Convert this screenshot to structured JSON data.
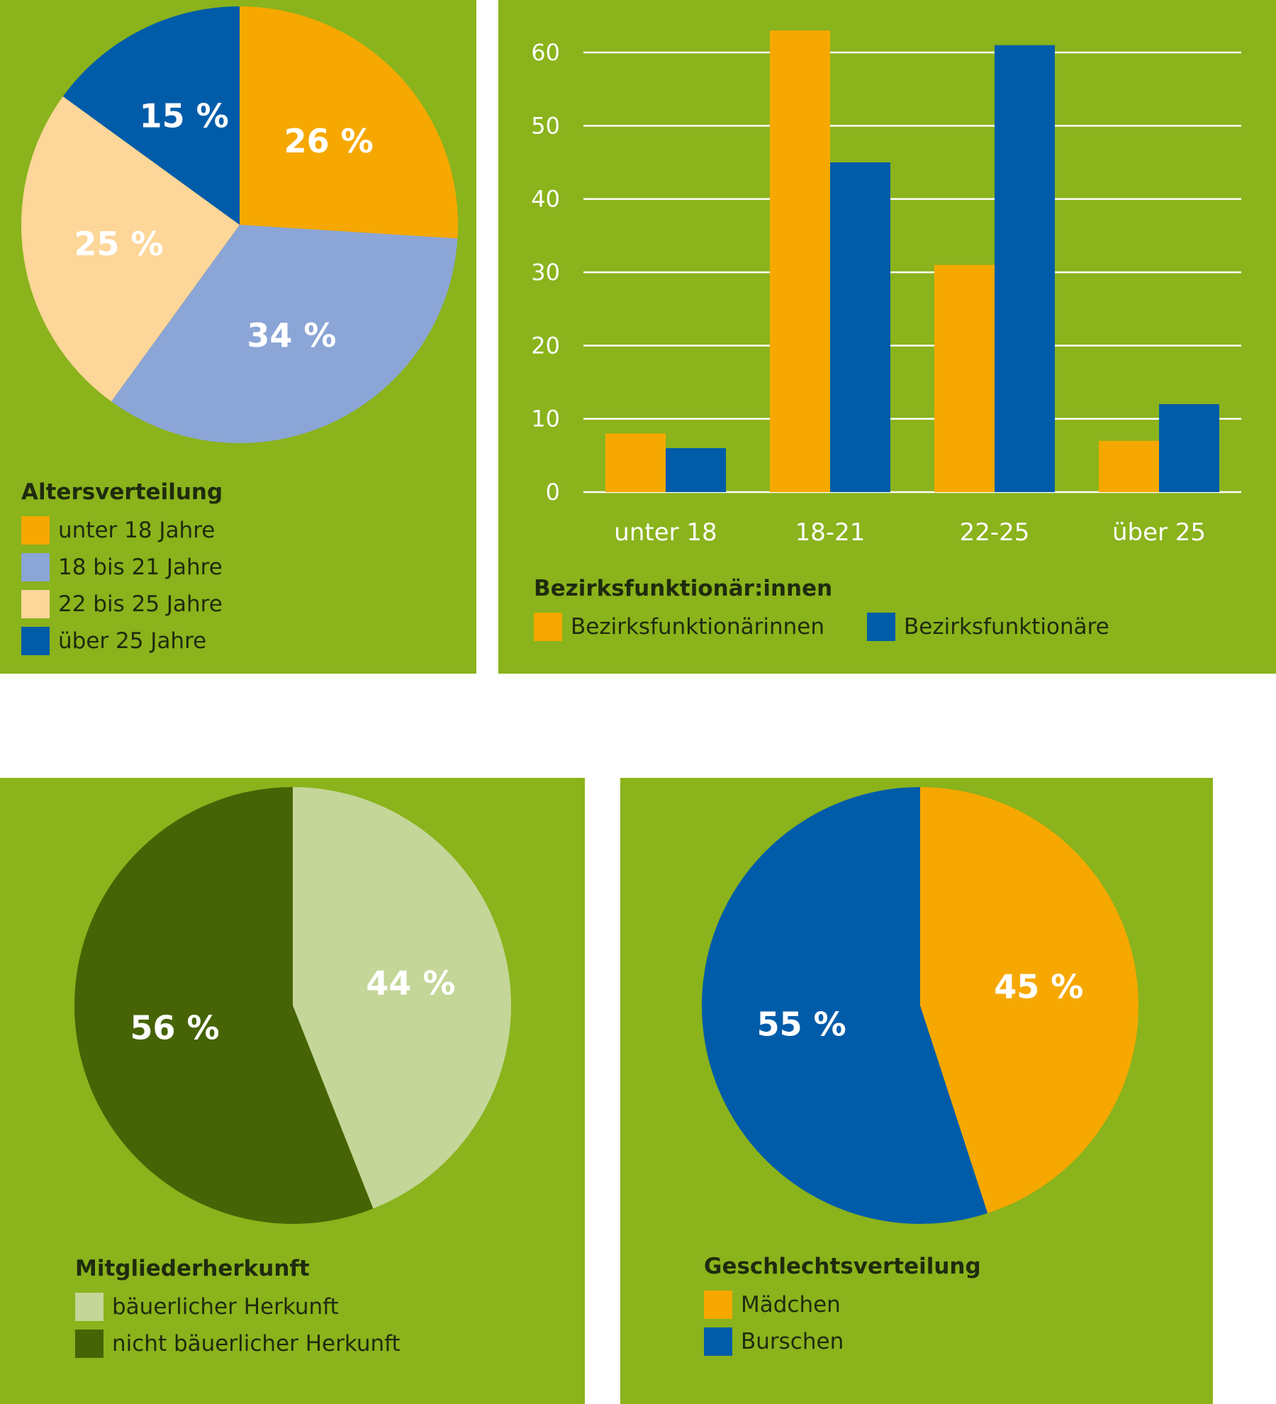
{
  "colors": {
    "panel_bg": "#8ab31c",
    "orange": "#f6a800",
    "light_blue": "#8ba5d6",
    "peach": "#fdd699",
    "blue": "#005ca9",
    "dark_green": "#466405",
    "light_green": "#c4d698",
    "white": "#ffffff"
  },
  "chart_data": [
    {
      "type": "pie",
      "title": "Altersverteilung",
      "slices": [
        {
          "label": "unter 18 Jahre",
          "value": 26,
          "text": "26 %",
          "color": "#f6a800"
        },
        {
          "label": "18 bis 21 Jahre",
          "value": 34,
          "text": "34 %",
          "color": "#8ba5d6"
        },
        {
          "label": "22 bis 25 Jahre",
          "value": 25,
          "text": "25 %",
          "color": "#fdd699"
        },
        {
          "label": "über 25 Jahre",
          "value": 15,
          "text": "15 %",
          "color": "#005ca9"
        }
      ]
    },
    {
      "type": "bar",
      "title": "Bezirksfunktionär:innen",
      "categories": [
        "unter 18",
        "18-21",
        "22-25",
        "über 25"
      ],
      "series": [
        {
          "name": "Bezirksfunktionärinnen",
          "values": [
            8,
            63,
            31,
            7
          ],
          "color": "#f6a800"
        },
        {
          "name": "Bezirksfunktionäre",
          "values": [
            6,
            45,
            61,
            12
          ],
          "color": "#005ca9"
        }
      ],
      "yticks": [
        0,
        10,
        20,
        30,
        40,
        50,
        60
      ],
      "ylim": [
        0,
        65
      ],
      "grid": true,
      "xlabel": "",
      "ylabel": ""
    },
    {
      "type": "pie",
      "title": "Mitgliederherkunft",
      "slices": [
        {
          "label": "bäuerlicher Herkunft",
          "value": 44,
          "text": "44 %",
          "color": "#c4d698"
        },
        {
          "label": "nicht bäuerlicher Herkunft",
          "value": 56,
          "text": "56 %",
          "color": "#466405"
        }
      ]
    },
    {
      "type": "pie",
      "title": "Geschlechtsverteilung",
      "slices": [
        {
          "label": "Mädchen",
          "value": 45,
          "text": "45 %",
          "color": "#f6a800"
        },
        {
          "label": "Burschen",
          "value": 55,
          "text": "55 %",
          "color": "#005ca9"
        }
      ]
    }
  ]
}
